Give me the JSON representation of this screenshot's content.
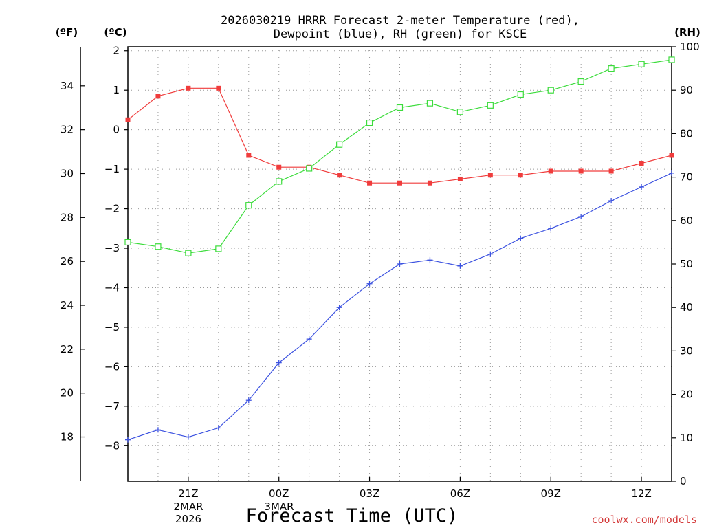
{
  "header": {
    "title_line1": "2026030219 HRRR Forecast 2-meter Temperature (red),",
    "title_line2": "Dewpoint (blue), RH (green) for KSCE"
  },
  "axes": {
    "f_unit": "(ºF)",
    "c_unit": "(ºC)",
    "rh_unit": "(RH)",
    "xlabel": "Forecast Time (UTC)",
    "date_line1": "2MAR",
    "date_line2": "2026",
    "date_line3": "3MAR"
  },
  "credit": "coolwx.com/models",
  "chart_data": {
    "type": "line",
    "title": "2026030219 HRRR Forecast 2-meter Temperature (red), Dewpoint (blue), RH (green) for KSCE",
    "xlabel": "Forecast Time (UTC)",
    "x_hours": [
      19,
      20,
      21,
      22,
      23,
      24,
      25,
      26,
      27,
      28,
      29,
      30,
      31,
      32,
      33,
      34,
      35,
      36,
      37
    ],
    "x_range": [
      19,
      37
    ],
    "x_ticks": [
      {
        "hour": 21,
        "label": "21Z"
      },
      {
        "hour": 24,
        "label": "00Z"
      },
      {
        "hour": 27,
        "label": "03Z"
      },
      {
        "hour": 30,
        "label": "06Z"
      },
      {
        "hour": 33,
        "label": "09Z"
      },
      {
        "hour": 36,
        "label": "12Z"
      }
    ],
    "y_celsius": {
      "range": [
        -8.9,
        2.1
      ],
      "ticks": [
        "2",
        "1",
        "0",
        "−1",
        "−2",
        "−3",
        "−4",
        "−5",
        "−6",
        "−7",
        "−8"
      ]
    },
    "y_fahrenheit": {
      "ticks": [
        "34",
        "32",
        "30",
        "28",
        "26",
        "24",
        "22",
        "20",
        "18"
      ]
    },
    "y_rh": {
      "range": [
        0,
        100
      ],
      "ticks": [
        "100",
        "90",
        "80",
        "70",
        "60",
        "50",
        "40",
        "30",
        "20",
        "10",
        "0"
      ]
    },
    "series": [
      {
        "name": "Temperature",
        "units": "C",
        "color": "#f03c3c",
        "marker": "filled-square",
        "values": [
          0.25,
          0.85,
          1.05,
          1.05,
          -0.65,
          -0.95,
          -0.95,
          -1.15,
          -1.35,
          -1.35,
          -1.35,
          -1.25,
          -1.15,
          -1.15,
          -1.05,
          -1.05,
          -1.05,
          -0.85,
          -0.65
        ]
      },
      {
        "name": "Dewpoint",
        "units": "C",
        "color": "#3c52e0",
        "marker": "plus",
        "values": [
          -7.85,
          -7.6,
          -7.78,
          -7.55,
          -6.85,
          -5.9,
          -5.3,
          -4.5,
          -3.9,
          -3.4,
          -3.3,
          -3.45,
          -3.15,
          -2.75,
          -2.5,
          -2.2,
          -1.8,
          -1.45,
          -1.1
        ]
      },
      {
        "name": "RH",
        "units": "%",
        "color": "#3cdc3c",
        "marker": "open-square",
        "values": [
          55,
          54,
          52.5,
          53.5,
          63.5,
          69,
          72,
          77.5,
          82.5,
          86,
          87,
          85,
          86.5,
          89,
          90,
          92,
          95,
          96,
          97
        ]
      }
    ]
  }
}
